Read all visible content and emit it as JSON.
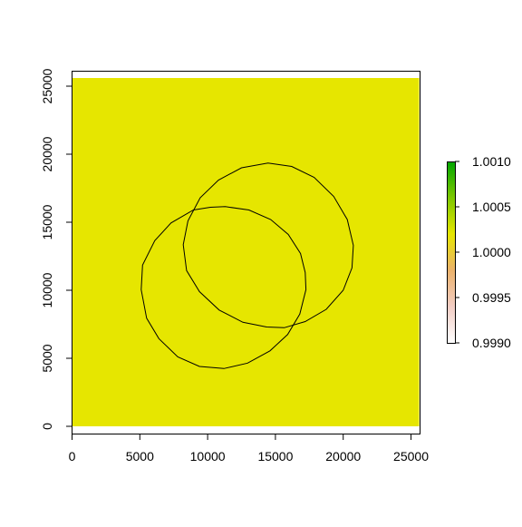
{
  "chart_data": {
    "type": "heatmap",
    "title": "",
    "xlabel": "",
    "ylabel": "",
    "xlim": [
      0,
      25600
    ],
    "ylim": [
      0,
      25600
    ],
    "x_ticks": [
      0,
      5000,
      10000,
      15000,
      20000,
      25000
    ],
    "y_ticks": [
      0,
      5000,
      10000,
      15000,
      20000,
      25000
    ],
    "x_tick_labels": [
      "0",
      "5000",
      "10000",
      "15000",
      "20000",
      "25000"
    ],
    "y_tick_labels": [
      "0",
      "5000",
      "10000",
      "15000",
      "20000",
      "25000"
    ],
    "raster": {
      "x_range": [
        0,
        25600
      ],
      "y_range": [
        0,
        25600
      ],
      "value": 1.0,
      "color": "#E6E600"
    },
    "polygons": [
      {
        "points": [
          [
            11300,
            16150
          ],
          [
            13050,
            15900
          ],
          [
            14650,
            15200
          ],
          [
            15950,
            14100
          ],
          [
            16850,
            12700
          ],
          [
            17200,
            11300
          ],
          [
            17250,
            10050
          ],
          [
            16800,
            8250
          ],
          [
            15900,
            6750
          ],
          [
            14600,
            5550
          ],
          [
            12950,
            4650
          ],
          [
            11200,
            4250
          ],
          [
            9400,
            4400
          ],
          [
            7800,
            5100
          ],
          [
            6400,
            6450
          ],
          [
            5500,
            7950
          ],
          [
            5100,
            10050
          ],
          [
            5200,
            11850
          ],
          [
            6100,
            13650
          ],
          [
            7300,
            14950
          ],
          [
            8950,
            15900
          ],
          [
            10200,
            16100
          ]
        ]
      },
      {
        "points": [
          [
            14450,
            19350
          ],
          [
            16200,
            19100
          ],
          [
            17850,
            18300
          ],
          [
            19300,
            16900
          ],
          [
            20300,
            15200
          ],
          [
            20750,
            13300
          ],
          [
            20650,
            11650
          ],
          [
            20000,
            10000
          ],
          [
            18750,
            8600
          ],
          [
            17200,
            7700
          ],
          [
            15650,
            7250
          ],
          [
            14350,
            7300
          ],
          [
            12600,
            7650
          ],
          [
            10850,
            8550
          ],
          [
            9400,
            9900
          ],
          [
            8450,
            11450
          ],
          [
            8200,
            13350
          ],
          [
            8550,
            15100
          ],
          [
            9450,
            16800
          ],
          [
            10800,
            18100
          ],
          [
            12500,
            19000
          ]
        ]
      }
    ],
    "legend": {
      "position": "right",
      "min": 0.999,
      "max": 1.001,
      "ticks": [
        0.999,
        0.9995,
        1.0,
        1.0005,
        1.001
      ],
      "tick_labels": [
        "0.9990",
        "0.9995",
        "1.0000",
        "1.0005",
        "1.0010"
      ],
      "gradient_colors": [
        "#FFFFFF",
        "#F2CDC4",
        "#EBB26B",
        "#E6E600",
        "#7DC700",
        "#00A600"
      ]
    },
    "grid": false
  }
}
